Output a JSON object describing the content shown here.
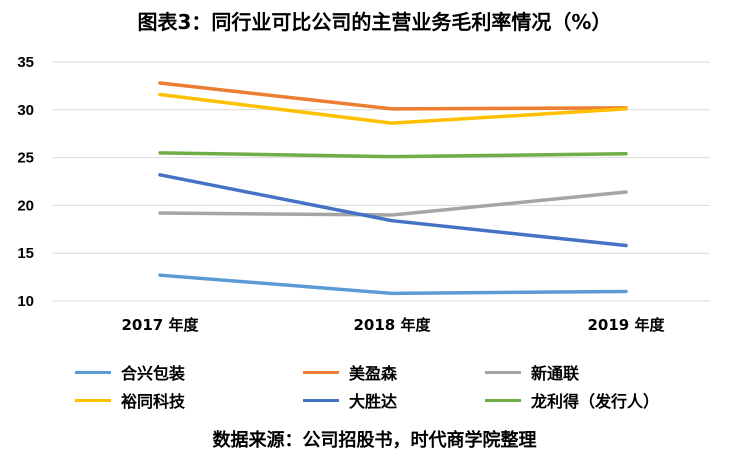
{
  "chart_data": {
    "type": "line",
    "title": "图表3：同行业可比公司的主营业务毛利率情况（%）",
    "categories": [
      "2017 年度",
      "2018 年度",
      "2019 年度"
    ],
    "ylim": [
      10,
      35
    ],
    "yticks": [
      10,
      15,
      20,
      25,
      30,
      35
    ],
    "grid": true,
    "legend_position": "bottom",
    "series": [
      {
        "name": "合兴包装",
        "color": "#5b9bd5",
        "values": [
          12.7,
          10.8,
          11.0
        ]
      },
      {
        "name": "美盈森",
        "color": "#ed7d31",
        "values": [
          32.8,
          30.1,
          30.2
        ]
      },
      {
        "name": "新通联",
        "color": "#a5a5a5",
        "values": [
          19.2,
          19.0,
          21.4
        ]
      },
      {
        "name": "裕同科技",
        "color": "#ffc000",
        "values": [
          31.6,
          28.6,
          30.1
        ]
      },
      {
        "name": "大胜达",
        "color": "#4472c4",
        "values": [
          23.2,
          18.4,
          15.8
        ]
      },
      {
        "name": "龙利得（发行人）",
        "color": "#70ad47",
        "values": [
          25.5,
          25.1,
          25.4
        ]
      }
    ]
  },
  "source": "数据来源：公司招股书，时代商学院整理"
}
